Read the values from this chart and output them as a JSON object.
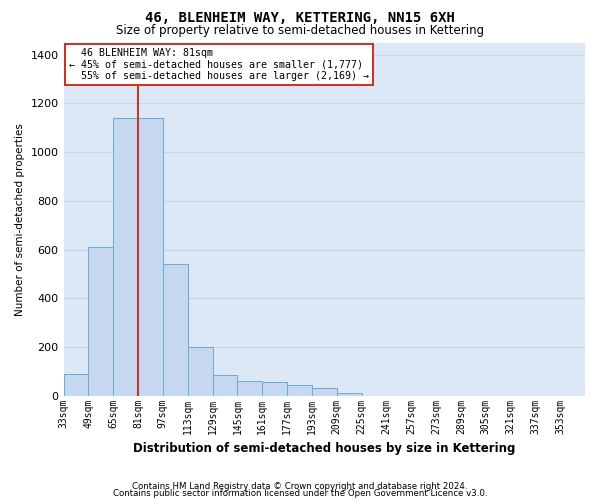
{
  "title": "46, BLENHEIM WAY, KETTERING, NN15 6XH",
  "subtitle": "Size of property relative to semi-detached houses in Kettering",
  "xlabel": "Distribution of semi-detached houses by size in Kettering",
  "ylabel": "Number of semi-detached properties",
  "footnote1": "Contains HM Land Registry data © Crown copyright and database right 2024.",
  "footnote2": "Contains public sector information licensed under the Open Government Licence v3.0.",
  "property_size": 81,
  "property_label": "46 BLENHEIM WAY: 81sqm",
  "pct_smaller": 45,
  "pct_larger": 55,
  "count_smaller": 1777,
  "count_larger": 2169,
  "bin_labels": [
    "33sqm",
    "49sqm",
    "65sqm",
    "81sqm",
    "97sqm",
    "113sqm",
    "129sqm",
    "145sqm",
    "161sqm",
    "177sqm",
    "193sqm",
    "209sqm",
    "225sqm",
    "241sqm",
    "257sqm",
    "273sqm",
    "289sqm",
    "305sqm",
    "321sqm",
    "337sqm",
    "353sqm"
  ],
  "bin_edges": [
    33,
    49,
    65,
    81,
    97,
    113,
    129,
    145,
    161,
    177,
    193,
    209,
    225,
    241,
    257,
    273,
    289,
    305,
    321,
    337,
    353
  ],
  "bar_values": [
    90,
    610,
    1140,
    1140,
    540,
    200,
    85,
    60,
    55,
    45,
    30,
    10,
    0,
    0,
    0,
    0,
    0,
    0,
    0,
    0
  ],
  "bar_color": "#c5d8f0",
  "bar_edge_color": "#6aabd2",
  "vline_color": "#c0392b",
  "annotation_box_edge_color": "#c0392b",
  "grid_color": "#c8d4e8",
  "background_color": "#dce8f5",
  "ylim": [
    0,
    1450
  ],
  "yticks": [
    0,
    200,
    400,
    600,
    800,
    1000,
    1200,
    1400
  ]
}
